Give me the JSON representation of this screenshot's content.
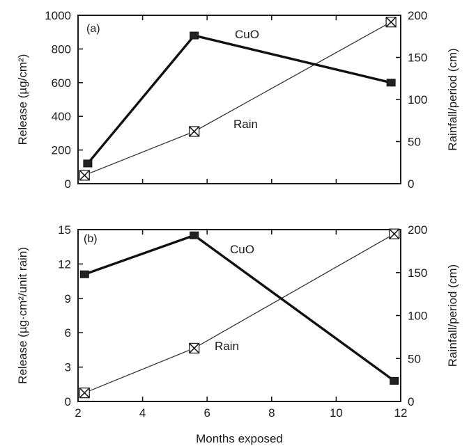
{
  "chart_data": [
    {
      "type": "line",
      "panel_label": "(a)",
      "xlabel": "",
      "xlim": [
        2,
        12
      ],
      "ylabel": "Release (µg/cm²)",
      "ylim": [
        0,
        1000
      ],
      "yticks": [
        0,
        200,
        400,
        600,
        800,
        1000
      ],
      "y2label": "Rainfall/period (cm)",
      "y2lim": [
        0,
        200
      ],
      "y2ticks": [
        0,
        50,
        100,
        150,
        200
      ],
      "grid": false,
      "series": [
        {
          "name": "CuO",
          "axis": "left",
          "marker": "filled-square",
          "x": [
            2.3,
            5.6,
            11.7
          ],
          "y": [
            120,
            880,
            600
          ]
        },
        {
          "name": "Rain",
          "axis": "right",
          "marker": "crossed-square",
          "x": [
            2.2,
            5.6,
            11.7
          ],
          "y": [
            10,
            62,
            192
          ]
        }
      ]
    },
    {
      "type": "line",
      "panel_label": "(b)",
      "xlabel": "Months exposed",
      "xlim": [
        2,
        12
      ],
      "xticks": [
        2,
        4,
        6,
        8,
        10,
        12
      ],
      "ylabel": "Release (µg·cm²/unit rain)",
      "ylim": [
        0,
        15
      ],
      "yticks": [
        0,
        3,
        6,
        9,
        12,
        15
      ],
      "y2label": "Rainfall/period (cm)",
      "y2lim": [
        0,
        200
      ],
      "y2ticks": [
        0,
        50,
        100,
        150,
        200
      ],
      "grid": false,
      "series": [
        {
          "name": "CuO",
          "axis": "left",
          "marker": "filled-square",
          "x": [
            2.2,
            5.6,
            11.8
          ],
          "y": [
            11.1,
            14.5,
            1.8
          ]
        },
        {
          "name": "Rain",
          "axis": "right",
          "marker": "crossed-square",
          "x": [
            2.2,
            5.6,
            11.8
          ],
          "y": [
            10,
            62,
            195
          ]
        }
      ]
    }
  ]
}
